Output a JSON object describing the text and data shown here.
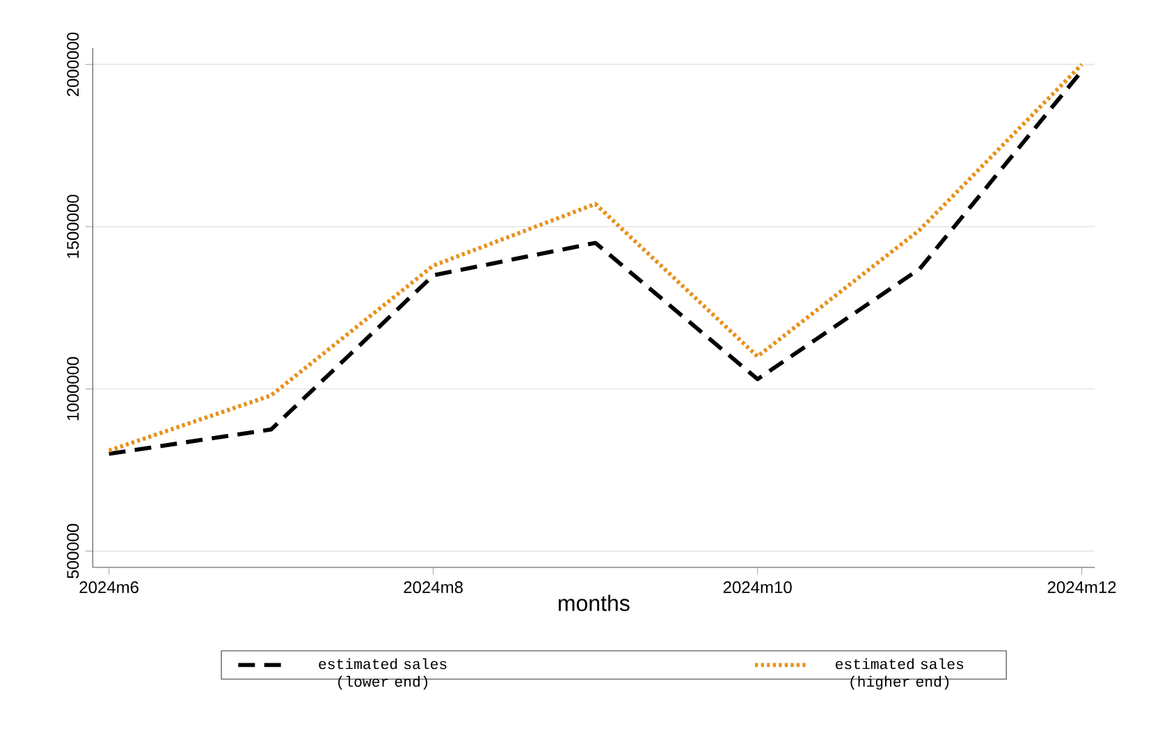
{
  "chart_data": {
    "type": "line",
    "xlabel": "months",
    "categories": [
      "2024m6",
      null,
      "2024m8",
      null,
      "2024m10",
      null,
      "2024m12"
    ],
    "series": [
      {
        "name": "estimated sales (lower end)",
        "color": "#000000",
        "line_style": "dashed",
        "values": [
          800000,
          875000,
          1350000,
          1450000,
          1030000,
          1370000,
          1980000
        ]
      },
      {
        "name": "estimated sales (higher end)",
        "color": "#e8901a",
        "line_style": "dotted",
        "values": [
          810000,
          980000,
          1380000,
          1570000,
          1100000,
          1490000,
          2000000
        ]
      }
    ],
    "ylim": [
      450000,
      2050000
    ],
    "yticks": [
      500000,
      1000000,
      1500000,
      2000000
    ],
    "grid": "y",
    "legend": "bottom",
    "marker": "none"
  }
}
